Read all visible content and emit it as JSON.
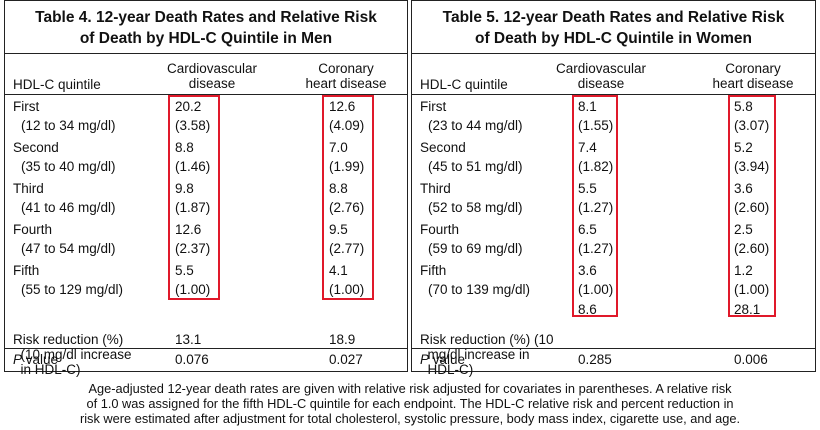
{
  "tables": [
    {
      "title_line1": "Table 4.   12-year Death Rates and Relative Risk",
      "title_line2": "of Death by HDL-C Quintile in Men",
      "col_headers": {
        "quintile": "HDL-C quintile",
        "cvd": [
          "Cardiovascular",
          "disease"
        ],
        "chd": [
          "Coronary",
          "heart disease"
        ]
      },
      "rows": [
        {
          "name": "First",
          "range": "(12 to 34 mg/dl)",
          "cvd_rate": "20.2",
          "cvd_rr": "(3.58)",
          "chd_rate": "12.6",
          "chd_rr": "(4.09)"
        },
        {
          "name": "Second",
          "range": "(35 to 40 mg/dl)",
          "cvd_rate": "8.8",
          "cvd_rr": "(1.46)",
          "chd_rate": "7.0",
          "chd_rr": "(1.99)"
        },
        {
          "name": "Third",
          "range": "(41 to 46 mg/dl)",
          "cvd_rate": "9.8",
          "cvd_rr": "(1.87)",
          "chd_rate": "8.8",
          "chd_rr": "(2.76)"
        },
        {
          "name": "Fourth",
          "range": "(47 to 54 mg/dl)",
          "cvd_rate": "12.6",
          "cvd_rr": "(2.37)",
          "chd_rate": "9.5",
          "chd_rr": "(2.77)"
        },
        {
          "name": "Fifth",
          "range": "(55 to 129 mg/dl)",
          "cvd_rate": "5.5",
          "cvd_rr": "(1.00)",
          "chd_rate": "4.1",
          "chd_rr": "(1.00)"
        }
      ],
      "risk_reduction_label": [
        "Risk reduction (%)",
        "  (10 mg/dl increase",
        "  in HDL-C)"
      ],
      "risk_reduction": {
        "cvd": "13.1",
        "chd": "18.9"
      },
      "p_label_italic": "P",
      "p_label_rest": " value",
      "p_values": {
        "cvd": "0.076",
        "chd": "0.027"
      }
    },
    {
      "title_line1": "Table 5.   12-year Death Rates and Relative Risk",
      "title_line2": "of Death by HDL-C Quintile in Women",
      "col_headers": {
        "quintile": "HDL-C quintile",
        "cvd": [
          "Cardiovascular",
          "disease"
        ],
        "chd": [
          "Coronary",
          "heart disease"
        ]
      },
      "rows": [
        {
          "name": "First",
          "range": "(23 to 44 mg/dl)",
          "cvd_rate": "8.1",
          "cvd_rr": "(1.55)",
          "chd_rate": "5.8",
          "chd_rr": "(3.07)"
        },
        {
          "name": "Second",
          "range": "(45 to 51 mg/dl)",
          "cvd_rate": "7.4",
          "cvd_rr": "(1.82)",
          "chd_rate": "5.2",
          "chd_rr": "(3.94)"
        },
        {
          "name": "Third",
          "range": "(52 to 58 mg/dl)",
          "cvd_rate": "5.5",
          "cvd_rr": "(1.27)",
          "chd_rate": "3.6",
          "chd_rr": "(2.60)"
        },
        {
          "name": "Fourth",
          "range": "(59 to 69 mg/dl)",
          "cvd_rate": "6.5",
          "cvd_rr": "(1.27)",
          "chd_rate": "2.5",
          "chd_rr": "(2.60)"
        },
        {
          "name": "Fifth",
          "range": "(70 to 139 mg/dl)",
          "cvd_rate": "3.6",
          "cvd_rr": "(1.00)",
          "chd_rate": "1.2",
          "chd_rr": "(1.00)"
        }
      ],
      "risk_reduction_label": [
        "Risk reduction (%) (10",
        "  mg/dl increase in",
        "  HDL-C)"
      ],
      "risk_reduction": {
        "cvd": "8.6",
        "chd": "28.1"
      },
      "p_label_italic": "P",
      "p_label_rest": " value",
      "p_values": {
        "cvd": "0.285",
        "chd": "0.006"
      }
    }
  ],
  "caption": [
    "Age-adjusted 12-year death rates are given with relative risk adjusted for covariates in parentheses. A relative risk",
    "of 1.0 was assigned for the fifth HDL-C quintile for each endpoint. The HDL-C relative risk and percent reduction in",
    "risk were estimated after adjustment for total cholesterol, systolic pressure, body mass index, cigarette use, and age."
  ],
  "colors": {
    "highlight": "#e0192a",
    "text": "#111111"
  }
}
